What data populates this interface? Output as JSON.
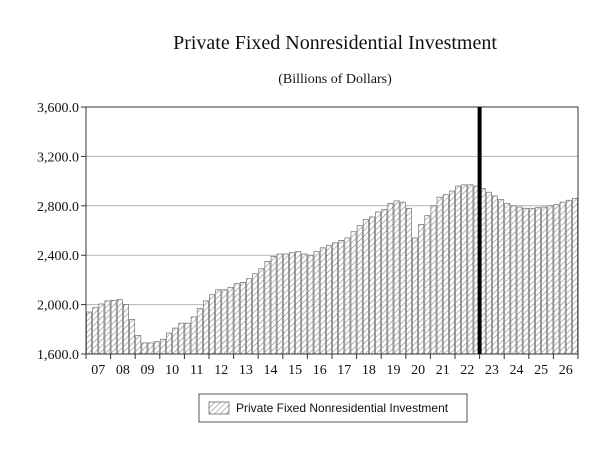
{
  "chart_data": {
    "type": "bar",
    "title": "Private Fixed Nonresidential Investment",
    "subtitle": "(Billions of Dollars)",
    "ylim": [
      1600,
      3600
    ],
    "yticks": [
      "1,600.0",
      "2,000.0",
      "2,400.0",
      "2,800.0",
      "3,200.0",
      "3,600.0"
    ],
    "ytick_values": [
      1600,
      2000,
      2400,
      2800,
      3200,
      3600
    ],
    "grid": true,
    "legend_position": "bottom-center",
    "xtick_labels": [
      "07",
      "08",
      "09",
      "10",
      "11",
      "12",
      "13",
      "14",
      "15",
      "16",
      "17",
      "18",
      "19",
      "20",
      "21",
      "22",
      "23",
      "24",
      "25",
      "26"
    ],
    "forecast_marker_after_category": "2022Q4",
    "series": [
      {
        "name": "Private Fixed Nonresidential Investment",
        "color": "#ffffff",
        "hatch": "diagonal",
        "categories": [
          "2007Q1",
          "2007Q2",
          "2007Q3",
          "2007Q4",
          "2008Q1",
          "2008Q2",
          "2008Q3",
          "2008Q4",
          "2009Q1",
          "2009Q2",
          "2009Q3",
          "2009Q4",
          "2010Q1",
          "2010Q2",
          "2010Q3",
          "2010Q4",
          "2011Q1",
          "2011Q2",
          "2011Q3",
          "2011Q4",
          "2012Q1",
          "2012Q2",
          "2012Q3",
          "2012Q4",
          "2013Q1",
          "2013Q2",
          "2013Q3",
          "2013Q4",
          "2014Q1",
          "2014Q2",
          "2014Q3",
          "2014Q4",
          "2015Q1",
          "2015Q2",
          "2015Q3",
          "2015Q4",
          "2016Q1",
          "2016Q2",
          "2016Q3",
          "2016Q4",
          "2017Q1",
          "2017Q2",
          "2017Q3",
          "2017Q4",
          "2018Q1",
          "2018Q2",
          "2018Q3",
          "2018Q4",
          "2019Q1",
          "2019Q2",
          "2019Q3",
          "2019Q4",
          "2020Q1",
          "2020Q2",
          "2020Q3",
          "2020Q4",
          "2021Q1",
          "2021Q2",
          "2021Q3",
          "2021Q4",
          "2022Q1",
          "2022Q2",
          "2022Q3",
          "2022Q4",
          "2023Q1",
          "2023Q2",
          "2023Q3",
          "2023Q4",
          "2024Q1",
          "2024Q2",
          "2024Q3",
          "2024Q4",
          "2025Q1",
          "2025Q2",
          "2025Q3",
          "2025Q4",
          "2026Q1",
          "2026Q2",
          "2026Q3",
          "2026Q4"
        ],
        "values": [
          1940,
          1975,
          2005,
          2030,
          2035,
          2040,
          2000,
          1880,
          1750,
          1690,
          1690,
          1700,
          1720,
          1770,
          1810,
          1850,
          1850,
          1900,
          1970,
          2030,
          2080,
          2120,
          2120,
          2140,
          2170,
          2180,
          2210,
          2250,
          2290,
          2350,
          2390,
          2410,
          2410,
          2420,
          2430,
          2410,
          2400,
          2430,
          2460,
          2480,
          2500,
          2520,
          2540,
          2590,
          2640,
          2690,
          2710,
          2750,
          2770,
          2820,
          2840,
          2830,
          2780,
          2540,
          2650,
          2720,
          2800,
          2870,
          2890,
          2920,
          2960,
          2970,
          2970,
          2960,
          2940,
          2910,
          2880,
          2850,
          2820,
          2800,
          2790,
          2780,
          2780,
          2785,
          2790,
          2800,
          2810,
          2830,
          2845,
          2860
        ]
      }
    ]
  }
}
